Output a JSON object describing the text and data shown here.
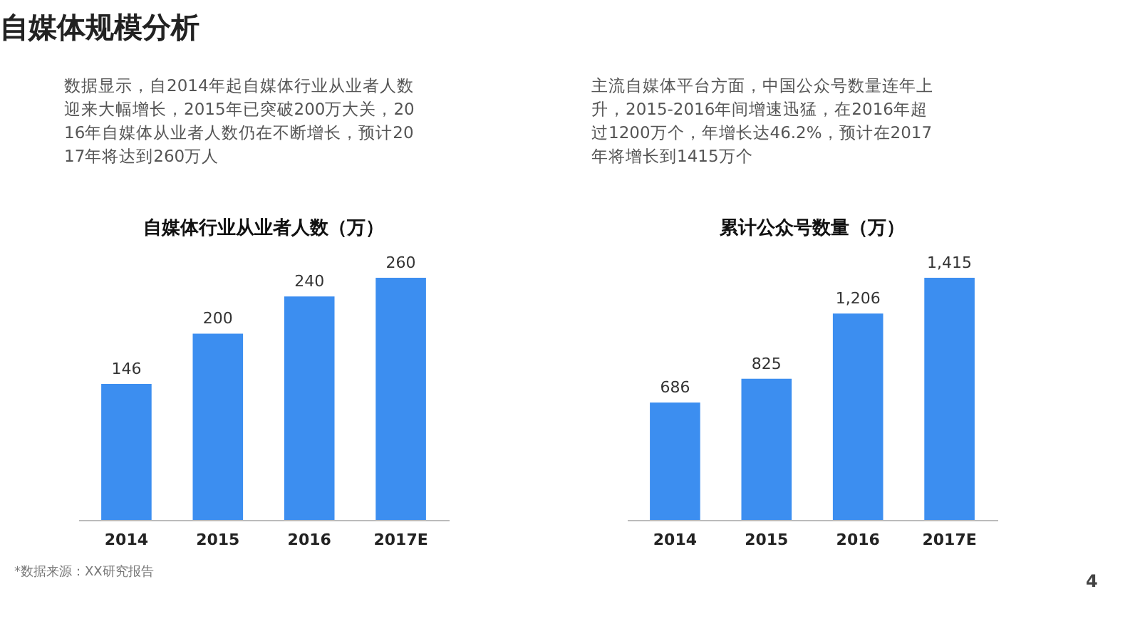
{
  "chart_data": [
    {
      "type": "bar",
      "title": "自媒体行业从业者人数（万）",
      "categories": [
        "2014",
        "2015",
        "2016",
        "2017E"
      ],
      "values": [
        146,
        200,
        240,
        260
      ],
      "color": "#3c8ef0",
      "data_labels": true,
      "annotations": [
        "数据显示，自2014年起自媒体行业从业者人数迎来大幅增长，2015年已突破200万大关，2016年自媒体从业者人数仍在不断增长，预计2017年将达到260万人",
        "*数据来源：XX研究报告",
        "自媒体规模分析"
      ]
    },
    {
      "type": "bar",
      "title": "累计公众号数量（万）",
      "categories": [
        "2014",
        "2015",
        "2016",
        "2017E"
      ],
      "values": [
        686,
        825,
        1206,
        1415
      ],
      "color": "#3c8ef0",
      "value_labels": [
        "686",
        "825",
        "1,206",
        "1,415"
      ],
      "annotations": [
        "主流自媒体平台方面，中国公众号数量连年上升，2015-2016年间增速迅猛，在2016年超过1200万个，年增长达46.2%，预计在2017年将增长到1415万个",
        "4"
      ]
    }
  ]
}
